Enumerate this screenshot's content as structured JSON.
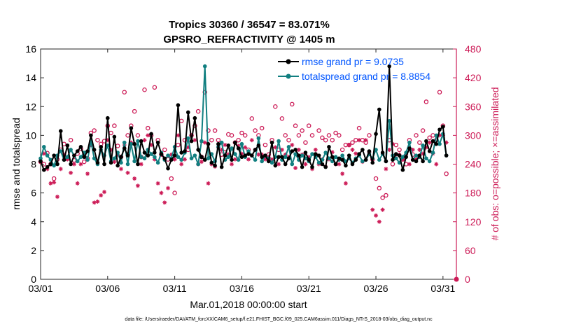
{
  "chart_data": {
    "type": "line",
    "title": "Tropics 30360 / 36547 = 83.071%",
    "subtitle": "GPSRO_REFRACTIVITY @ 1405 m",
    "xlabel": "Mar.01,2018 00:00:00 start",
    "ylabel": "rmse and totalspread",
    "y2label": "# of obs: o=possible; ×=assimilated",
    "footnote": "data file: /Users/raeder/DAI/ATM_forcXX/CAM6_setup/f.e21.FHIST_BGC.f09_025.CAM6assim.011/Diags_NTrS_2018-03/obs_diag_output.nc",
    "xlim": [
      1,
      32
    ],
    "ylim": [
      0,
      16
    ],
    "y2lim": [
      0,
      480
    ],
    "x_ticks": [
      1,
      6,
      11,
      16,
      21,
      26,
      31
    ],
    "x_tick_labels": [
      "03/01",
      "03/06",
      "03/11",
      "03/16",
      "03/21",
      "03/26",
      "03/31"
    ],
    "y_ticks": [
      0,
      2,
      4,
      6,
      8,
      10,
      12,
      14,
      16
    ],
    "y_tick_labels": [
      "0",
      "2",
      "4",
      "6",
      "8",
      "10",
      "12",
      "14",
      "16"
    ],
    "y2_ticks": [
      0,
      60,
      120,
      180,
      240,
      300,
      360,
      420,
      480
    ],
    "y2_tick_labels": [
      "0",
      "60",
      "120",
      "180",
      "240",
      "300",
      "360",
      "420",
      "480"
    ],
    "legend": [
      "rmse grand pr = 9.0735",
      "totalspread grand pr = 8.8854"
    ],
    "colors": {
      "rmse": "#000000",
      "spread": "#117f80",
      "obs": "#cc1a56",
      "legend_text": "#0055ff",
      "right_axis": "#cc1a56"
    },
    "rmse_x": [
      1.0,
      1.25,
      1.5,
      1.75,
      2.0,
      2.25,
      2.5,
      2.75,
      3.0,
      3.25,
      3.5,
      3.75,
      4.0,
      4.25,
      4.5,
      4.75,
      5.0,
      5.25,
      5.5,
      5.75,
      6.0,
      6.25,
      6.5,
      6.75,
      7.0,
      7.25,
      7.5,
      7.75,
      8.0,
      8.25,
      8.5,
      8.75,
      9.0,
      9.25,
      9.5,
      9.75,
      10.0,
      10.25,
      10.5,
      10.75,
      11.0,
      11.25,
      11.5,
      11.75,
      12.0,
      12.25,
      12.5,
      12.75,
      13.0,
      13.25,
      13.5,
      13.75,
      14.0,
      14.25,
      14.5,
      14.75,
      15.0,
      15.25,
      15.5,
      15.75,
      16.0,
      16.25,
      16.5,
      16.75,
      17.0,
      17.25,
      17.5,
      17.75,
      18.0,
      18.25,
      18.5,
      18.75,
      19.0,
      19.25,
      19.5,
      19.75,
      20.0,
      20.25,
      20.5,
      20.75,
      21.0,
      21.25,
      21.5,
      21.75,
      22.0,
      22.25,
      22.5,
      22.75,
      23.0,
      23.25,
      23.5,
      23.75,
      24.0,
      24.25,
      24.5,
      24.75,
      25.0,
      25.25,
      25.5,
      25.75,
      26.0,
      26.25,
      26.5,
      26.75,
      27.0,
      27.25,
      27.5,
      27.75,
      28.0,
      28.25,
      28.5,
      28.75,
      29.0,
      29.25,
      29.5,
      29.75,
      30.0,
      30.25,
      30.5,
      30.75,
      31.0,
      31.25,
      31.5,
      31.75
    ],
    "rmse": [
      8.2,
      7.6,
      7.8,
      8.0,
      8.6,
      8.0,
      10.3,
      8.3,
      9.3,
      8.0,
      8.6,
      8.9,
      9.2,
      8.5,
      8.9,
      10.0,
      9.0,
      8.1,
      9.2,
      8.0,
      11.2,
      8.1,
      9.9,
      7.9,
      8.5,
      9.1,
      8.6,
      10.5,
      9.4,
      8.0,
      9.6,
      8.8,
      8.6,
      10.1,
      8.8,
      9.5,
      8.7,
      8.4,
      7.7,
      8.3,
      8.6,
      12.1,
      8.8,
      8.9,
      11.6,
      9.6,
      11.2,
      9.0,
      8.5,
      8.3,
      9.4,
      8.1,
      7.9,
      9.4,
      7.8,
      8.6,
      9.3,
      8.3,
      9.5,
      9.1,
      8.5,
      8.6,
      8.7,
      8.6,
      9.0,
      9.3,
      8.5,
      8.6,
      8.2,
      9.5,
      7.9,
      8.5,
      8.5,
      8.0,
      8.4,
      8.9,
      9.0,
      8.6,
      7.8,
      8.8,
      8.3,
      7.8,
      8.7,
      8.6,
      8.0,
      7.8,
      9.2,
      8.5,
      8.0,
      8.4,
      8.3,
      7.9,
      8.6,
      8.0,
      8.3,
      8.7,
      9.0,
      8.3,
      8.9,
      8.1,
      10.1,
      11.8,
      8.8,
      8.2,
      14.8,
      8.3,
      8.7,
      8.6,
      7.6,
      8.5,
      9.1,
      8.3,
      8.2,
      8.6,
      8.2,
      9.6,
      8.9,
      9.6,
      9.4,
      10.4,
      10.6,
      8.6
    ],
    "spread_x": [
      1.0,
      1.25,
      1.5,
      1.75,
      2.0,
      2.25,
      2.5,
      2.75,
      3.0,
      3.25,
      3.5,
      3.75,
      4.0,
      4.25,
      4.5,
      4.75,
      5.0,
      5.25,
      5.5,
      5.75,
      6.0,
      6.25,
      6.5,
      6.75,
      7.0,
      7.25,
      7.5,
      7.75,
      8.0,
      8.25,
      8.5,
      8.75,
      9.0,
      9.25,
      9.5,
      9.75,
      10.0,
      10.25,
      10.5,
      10.75,
      11.0,
      11.25,
      11.5,
      11.75,
      12.0,
      12.25,
      12.5,
      12.75,
      13.0,
      13.25,
      13.5,
      13.75,
      14.0,
      14.25,
      14.5,
      14.75,
      15.0,
      15.25,
      15.5,
      15.75,
      16.0,
      16.25,
      16.5,
      16.75,
      17.0,
      17.25,
      17.5,
      17.75,
      18.0,
      18.25,
      18.5,
      18.75,
      19.0,
      19.25,
      19.5,
      19.75,
      20.0,
      20.25,
      20.5,
      20.75,
      21.0,
      21.25,
      21.5,
      21.75,
      22.0,
      22.25,
      22.5,
      22.75,
      23.0,
      23.25,
      23.5,
      23.75,
      24.0,
      24.25,
      24.5,
      24.75,
      25.0,
      25.25,
      25.5,
      25.75,
      26.0,
      26.25,
      26.5,
      26.75,
      27.0,
      27.25,
      27.5,
      27.75,
      28.0,
      28.25,
      28.5,
      28.75,
      29.0,
      29.25,
      29.5,
      29.75,
      30.0,
      30.25,
      30.5,
      30.75,
      31.0,
      31.25,
      31.5,
      31.75
    ],
    "spread": [
      8.4,
      9.2,
      8.6,
      8.3,
      7.9,
      8.6,
      8.9,
      8.3,
      8.5,
      9.0,
      8.6,
      8.2,
      8.5,
      8.8,
      8.3,
      9.6,
      8.4,
      8.0,
      9.0,
      8.6,
      9.3,
      8.2,
      8.4,
      8.8,
      8.1,
      9.5,
      8.0,
      9.4,
      8.2,
      9.6,
      8.5,
      8.4,
      9.0,
      8.7,
      8.5,
      8.1,
      8.8,
      8.3,
      8.6,
      8.4,
      9.2,
      8.5,
      8.3,
      8.8,
      9.8,
      8.4,
      8.6,
      8.0,
      9.6,
      14.8,
      8.4,
      8.7,
      8.2,
      9.2,
      9.5,
      8.3,
      8.5,
      9.1,
      8.7,
      8.3,
      9.4,
      8.5,
      8.9,
      8.6,
      8.3,
      9.8,
      8.2,
      8.6,
      8.4,
      8.1,
      8.5,
      9.6,
      8.3,
      8.5,
      9.2,
      8.0,
      8.7,
      8.3,
      8.6,
      8.4,
      8.2,
      8.7,
      8.5,
      8.1,
      8.3,
      8.8,
      8.4,
      8.2,
      8.5,
      8.3,
      8.6,
      8.2,
      8.4,
      8.1,
      8.4,
      8.6,
      8.2,
      8.3,
      8.7,
      8.4,
      9.0,
      8.3,
      8.7,
      8.2,
      11.0,
      8.6,
      8.4,
      8.1,
      8.5,
      8.8,
      9.5,
      8.3,
      8.6,
      8.5,
      9.3,
      8.4,
      8.2,
      8.8,
      10.0,
      9.4,
      10.1,
      8.6
    ],
    "obs_possible_x": [
      1.0,
      1.25,
      1.5,
      1.75,
      2.0,
      2.25,
      2.5,
      2.75,
      3.0,
      3.25,
      3.5,
      3.75,
      4.0,
      4.25,
      4.5,
      4.75,
      5.0,
      5.25,
      5.5,
      5.75,
      6.0,
      6.25,
      6.5,
      6.75,
      7.0,
      7.25,
      7.5,
      7.75,
      8.0,
      8.25,
      8.5,
      8.75,
      9.0,
      9.25,
      9.5,
      9.75,
      10.0,
      10.25,
      10.5,
      10.75,
      11.0,
      11.25,
      11.5,
      11.75,
      12.0,
      12.25,
      12.5,
      12.75,
      13.0,
      13.25,
      13.5,
      13.75,
      14.0,
      14.25,
      14.5,
      14.75,
      15.0,
      15.25,
      15.5,
      15.75,
      16.0,
      16.25,
      16.5,
      16.75,
      17.0,
      17.25,
      17.5,
      17.75,
      18.0,
      18.25,
      18.5,
      18.75,
      19.0,
      19.25,
      19.5,
      19.75,
      20.0,
      20.25,
      20.5,
      20.75,
      21.0,
      21.25,
      21.5,
      21.75,
      22.0,
      22.25,
      22.5,
      22.75,
      23.0,
      23.25,
      23.5,
      23.75,
      24.0,
      24.25,
      24.5,
      24.75,
      25.0,
      25.25,
      25.5,
      25.75,
      26.0,
      26.25,
      26.5,
      26.75,
      27.0,
      27.25,
      27.5,
      27.75,
      28.0,
      28.25,
      28.5,
      28.75,
      29.0,
      29.25,
      29.5,
      29.75,
      30.0,
      30.25,
      30.5,
      30.75,
      31.0,
      31.25,
      31.5,
      31.75
    ],
    "obs_possible": [
      245,
      240,
      263,
      240,
      210,
      250,
      270,
      282,
      252,
      290,
      248,
      262,
      272,
      245,
      252,
      305,
      310,
      290,
      282,
      288,
      320,
      305,
      320,
      278,
      255,
      390,
      300,
      320,
      350,
      300,
      255,
      395,
      315,
      300,
      400,
      290,
      260,
      270,
      250,
      210,
      180,
      280,
      330,
      290,
      270,
      300,
      320,
      350,
      255,
      390,
      310,
      290,
      310,
      290,
      260,
      265,
      302,
      300,
      285,
      290,
      305,
      300,
      270,
      335,
      310,
      300,
      315,
      280,
      260,
      290,
      360,
      270,
      335,
      300,
      290,
      365,
      320,
      300,
      310,
      285,
      320,
      300,
      260,
      310,
      295,
      290,
      300,
      290,
      305,
      300,
      270,
      280,
      280,
      285,
      290,
      315,
      290,
      285,
      300,
      250,
      210,
      190,
      170,
      175,
      290,
      240,
      280,
      270,
      250,
      240,
      290,
      260,
      300,
      285,
      310,
      370,
      295,
      300,
      290,
      390,
      320,
      220
    ],
    "obs_assimilated_x": [
      1.0,
      1.25,
      1.5,
      1.75,
      2.0,
      2.25,
      2.5,
      2.75,
      3.0,
      3.25,
      3.5,
      3.75,
      4.0,
      4.25,
      4.5,
      4.75,
      5.0,
      5.25,
      5.5,
      5.75,
      6.0,
      6.25,
      6.5,
      6.75,
      7.0,
      7.25,
      7.5,
      7.75,
      8.0,
      8.25,
      8.5,
      8.75,
      9.0,
      9.25,
      9.5,
      9.75,
      10.0,
      10.25,
      10.5,
      10.75,
      11.0,
      11.25,
      11.5,
      11.75,
      12.0,
      12.25,
      12.5,
      12.75,
      13.0,
      13.25,
      13.5,
      13.75,
      14.0,
      14.25,
      14.5,
      14.75,
      15.0,
      15.25,
      15.5,
      15.75,
      16.0,
      16.25,
      16.5,
      16.75,
      17.0,
      17.25,
      17.5,
      17.75,
      18.0,
      18.25,
      18.5,
      18.75,
      19.0,
      19.25,
      19.5,
      19.75,
      20.0,
      20.25,
      20.5,
      20.75,
      21.0,
      21.25,
      21.5,
      21.75,
      22.0,
      22.25,
      22.5,
      22.75,
      23.0,
      23.25,
      23.5,
      23.75,
      24.0,
      24.25,
      24.5,
      24.75,
      25.0,
      25.25,
      25.5,
      25.75,
      26.0,
      26.25,
      26.5,
      26.75,
      27.0,
      27.25,
      27.5,
      27.75,
      28.0,
      28.25,
      28.5,
      28.75,
      29.0,
      29.25,
      29.5,
      29.75,
      30.0,
      30.25,
      30.5,
      30.75,
      31.0,
      31.25,
      31.5,
      31.75
    ],
    "obs_assimilated": [
      245,
      262,
      230,
      200,
      202,
      172,
      230,
      260,
      250,
      222,
      240,
      200,
      240,
      262,
      220,
      280,
      160,
      162,
      175,
      182,
      290,
      270,
      245,
      260,
      230,
      280,
      222,
      285,
      210,
      195,
      240,
      290,
      300,
      280,
      250,
      200,
      180,
      160,
      190,
      260,
      250,
      300,
      240,
      250,
      275,
      300,
      290,
      240,
      245,
      285,
      200,
      240,
      235,
      275,
      270,
      280,
      260,
      240,
      250,
      278,
      262,
      275,
      250,
      290,
      270,
      260,
      260,
      250,
      255,
      250,
      275,
      240,
      270,
      260,
      255,
      280,
      232,
      270,
      260,
      240,
      255,
      230,
      270,
      240,
      250,
      235,
      250,
      265,
      240,
      240,
      220,
      200,
      280,
      270,
      262,
      290,
      245,
      290,
      265,
      145,
      133,
      120,
      145,
      230,
      270,
      282,
      260,
      260,
      250,
      260,
      240,
      270,
      250,
      270,
      262,
      275,
      285,
      262,
      240,
      300,
      300,
      285
    ]
  }
}
